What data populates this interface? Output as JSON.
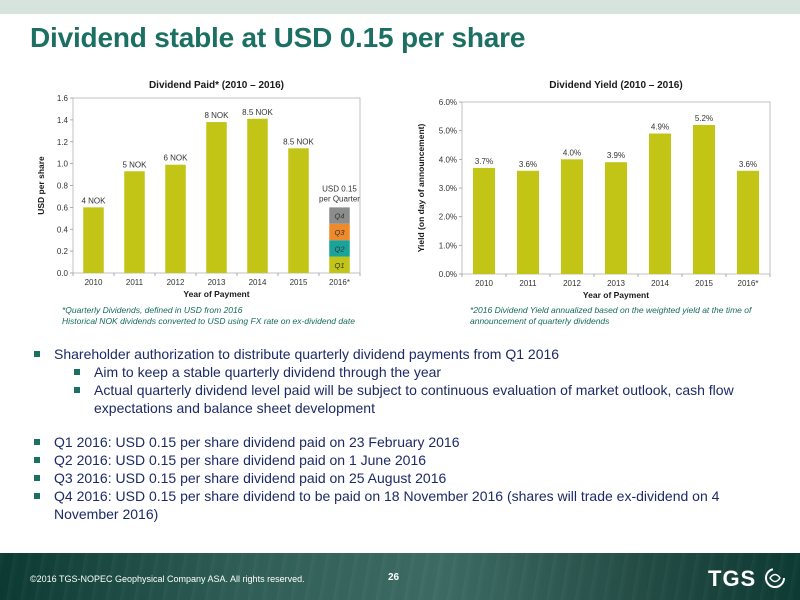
{
  "slide": {
    "title": "Dividend stable at USD 0.15 per share",
    "page_number": "26",
    "copyright": "©2016 TGS-NOPEC Geophysical Company ASA. All rights reserved.",
    "logo_text": "TGS",
    "brand_color": "#1c6f63"
  },
  "chart_data": [
    {
      "type": "bar",
      "title": "Dividend Paid* (2010 – 2016)",
      "xlabel": "Year of Payment",
      "ylabel": "USD per share",
      "categories": [
        "2010",
        "2011",
        "2012",
        "2013",
        "2014",
        "2015",
        "2016*"
      ],
      "values": [
        0.6,
        0.93,
        0.99,
        1.38,
        1.41,
        1.14,
        null
      ],
      "data_labels": [
        "4 NOK",
        "5 NOK",
        "6 NOK",
        "8 NOK",
        "8.5 NOK",
        "8.5 NOK",
        ""
      ],
      "yticks": [
        "0.0",
        "0.2",
        "0.4",
        "0.6",
        "0.8",
        "1.0",
        "1.2",
        "1.4",
        "1.6"
      ],
      "ylim": [
        0,
        1.6
      ],
      "bar_color": "#c2c416",
      "stacked_2016": {
        "label": "USD 0.15 per Quarter",
        "segments": [
          {
            "name": "Q1",
            "value": 0.15,
            "color": "#c2c416"
          },
          {
            "name": "Q2",
            "value": 0.15,
            "color": "#1aa39a"
          },
          {
            "name": "Q3",
            "value": 0.15,
            "color": "#ef8a2a"
          },
          {
            "name": "Q4",
            "value": 0.15,
            "color": "#8c8c8c"
          }
        ]
      },
      "footnote": [
        "*Quarterly Dividends, defined in USD from 2016",
        "Historical NOK dividends converted to USD using FX rate on ex-dividend date"
      ]
    },
    {
      "type": "bar",
      "title": "Dividend Yield (2010 – 2016)",
      "xlabel": "Year of Payment",
      "ylabel": "Yield (on day of announcement)",
      "categories": [
        "2010",
        "2011",
        "2012",
        "2013",
        "2014",
        "2015",
        "2016*"
      ],
      "values": [
        3.7,
        3.6,
        4.0,
        3.9,
        4.9,
        5.2,
        3.6
      ],
      "data_labels": [
        "3.7%",
        "3.6%",
        "4.0%",
        "3.9%",
        "4.9%",
        "5.2%",
        "3.6%"
      ],
      "yticks": [
        "0.0%",
        "1.0%",
        "2.0%",
        "3.0%",
        "4.0%",
        "5.0%",
        "6.0%"
      ],
      "ylim": [
        0,
        6
      ],
      "bar_color": "#c2c416",
      "footnote": [
        "*2016 Dividend Yield annualized based on the weighted yield at the time of",
        "announcement of quarterly dividends"
      ]
    }
  ],
  "bullets": [
    {
      "level": 1,
      "text": "Shareholder authorization to distribute quarterly dividend payments from Q1 2016"
    },
    {
      "level": 2,
      "text": "Aim to keep a stable quarterly dividend through the year"
    },
    {
      "level": 2,
      "text": "Actual quarterly dividend level paid will be subject to continuous evaluation of market outlook, cash flow expectations and balance sheet development"
    },
    {
      "level": 0,
      "text": ""
    },
    {
      "level": 1,
      "text": "Q1 2016: USD 0.15 per share dividend paid on 23 February 2016"
    },
    {
      "level": 1,
      "text": "Q2 2016: USD 0.15 per share dividend paid on 1 June 2016"
    },
    {
      "level": 1,
      "text": "Q3 2016: USD 0.15 per share dividend paid on 25 August 2016"
    },
    {
      "level": 1,
      "text": "Q4 2016: USD 0.15 per share dividend to be paid on 18 November 2016 (shares will trade ex-dividend on 4 November 2016)"
    }
  ]
}
